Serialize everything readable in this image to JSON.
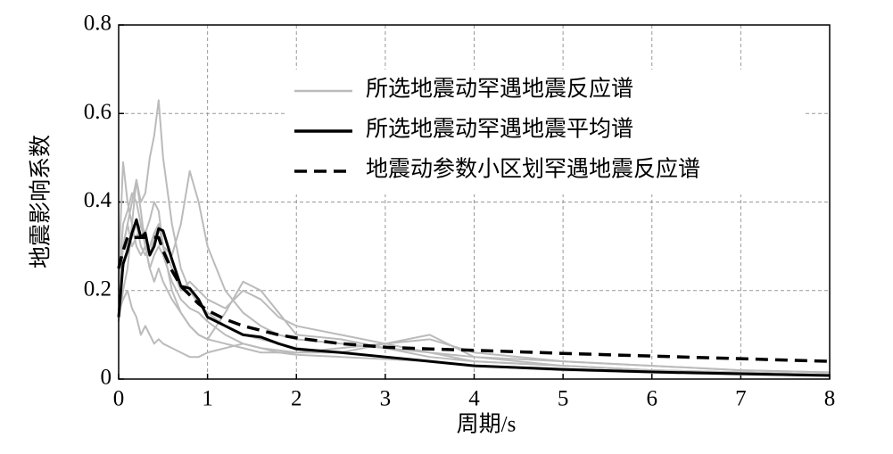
{
  "chart_data": {
    "type": "line",
    "xlabel": "周期/s",
    "ylabel": "地震影响系数",
    "x": [
      0,
      0.05,
      0.1,
      0.15,
      0.2,
      0.25,
      0.3,
      0.35,
      0.4,
      0.45,
      0.5,
      0.6,
      0.7,
      0.8,
      0.9,
      1.0,
      1.2,
      1.4,
      1.6,
      1.8,
      2.0,
      2.5,
      3.0,
      3.5,
      4.0,
      5.0,
      6.0,
      7.0,
      8.0
    ],
    "xlim": [
      0,
      8
    ],
    "xticks": [
      0,
      1,
      2,
      3,
      4,
      5,
      6,
      7,
      8
    ],
    "ylim": [
      0,
      0.8
    ],
    "yticks": [
      0,
      0.2,
      0.4,
      0.6,
      0.8
    ],
    "grid": true,
    "legend": "upper right",
    "series": [
      {
        "name": "所选地震动罕遇地震反应谱",
        "color": "#bbbbbb",
        "style": "solid",
        "records": [
          [
            0.2,
            0.3,
            0.35,
            0.4,
            0.45,
            0.4,
            0.42,
            0.5,
            0.55,
            0.63,
            0.5,
            0.35,
            0.25,
            0.2,
            0.17,
            0.15,
            0.12,
            0.1,
            0.09,
            0.08,
            0.07,
            0.06,
            0.05,
            0.04,
            0.03,
            0.02,
            0.015,
            0.01,
            0.008
          ],
          [
            0.15,
            0.25,
            0.3,
            0.32,
            0.35,
            0.3,
            0.28,
            0.3,
            0.33,
            0.35,
            0.3,
            0.28,
            0.35,
            0.47,
            0.4,
            0.3,
            0.2,
            0.15,
            0.12,
            0.1,
            0.09,
            0.08,
            0.07,
            0.06,
            0.05,
            0.03,
            0.02,
            0.015,
            0.01
          ],
          [
            0.25,
            0.49,
            0.4,
            0.35,
            0.3,
            0.28,
            0.3,
            0.25,
            0.22,
            0.25,
            0.22,
            0.18,
            0.15,
            0.12,
            0.1,
            0.09,
            0.08,
            0.07,
            0.06,
            0.06,
            0.055,
            0.05,
            0.045,
            0.04,
            0.03,
            0.02,
            0.015,
            0.01,
            0.008
          ],
          [
            0.13,
            0.2,
            0.25,
            0.35,
            0.45,
            0.38,
            0.3,
            0.28,
            0.32,
            0.35,
            0.3,
            0.25,
            0.2,
            0.22,
            0.2,
            0.18,
            0.16,
            0.2,
            0.18,
            0.14,
            0.12,
            0.1,
            0.08,
            0.06,
            0.04,
            0.03,
            0.02,
            0.015,
            0.01
          ],
          [
            0.15,
            0.18,
            0.2,
            0.16,
            0.14,
            0.1,
            0.12,
            0.1,
            0.08,
            0.09,
            0.08,
            0.07,
            0.06,
            0.05,
            0.05,
            0.06,
            0.07,
            0.08,
            0.07,
            0.06,
            0.06,
            0.07,
            0.08,
            0.09,
            0.06,
            0.04,
            0.03,
            0.02,
            0.015
          ],
          [
            0.2,
            0.3,
            0.35,
            0.3,
            0.32,
            0.35,
            0.3,
            0.25,
            0.28,
            0.3,
            0.28,
            0.22,
            0.18,
            0.16,
            0.15,
            0.13,
            0.1,
            0.08,
            0.07,
            0.065,
            0.06,
            0.06,
            0.08,
            0.1,
            0.05,
            0.04,
            0.03,
            0.02,
            0.015
          ],
          [
            0.22,
            0.35,
            0.38,
            0.42,
            0.4,
            0.35,
            0.33,
            0.36,
            0.4,
            0.38,
            0.3,
            0.2,
            0.15,
            0.12,
            0.1,
            0.09,
            0.15,
            0.22,
            0.2,
            0.15,
            0.1,
            0.09,
            0.07,
            0.05,
            0.04,
            0.03,
            0.02,
            0.015,
            0.01
          ]
        ]
      },
      {
        "name": "所选地震动罕遇地震平均谱",
        "color": "#000000",
        "style": "solid",
        "values": [
          0.14,
          0.26,
          0.29,
          0.33,
          0.36,
          0.32,
          0.33,
          0.28,
          0.3,
          0.34,
          0.335,
          0.27,
          0.21,
          0.205,
          0.18,
          0.14,
          0.12,
          0.1,
          0.095,
          0.08,
          0.068,
          0.06,
          0.05,
          0.04,
          0.03,
          0.022,
          0.016,
          0.012,
          0.008
        ]
      },
      {
        "name": "地震动参数小区划罕遇地震反应谱",
        "color": "#000000",
        "style": "dashed",
        "values": [
          0.25,
          0.29,
          0.32,
          0.32,
          0.32,
          0.32,
          0.32,
          0.32,
          0.32,
          0.32,
          0.29,
          0.245,
          0.21,
          0.19,
          0.17,
          0.155,
          0.135,
          0.12,
          0.11,
          0.1,
          0.093,
          0.08,
          0.072,
          0.068,
          0.065,
          0.058,
          0.052,
          0.046,
          0.04
        ]
      }
    ]
  }
}
